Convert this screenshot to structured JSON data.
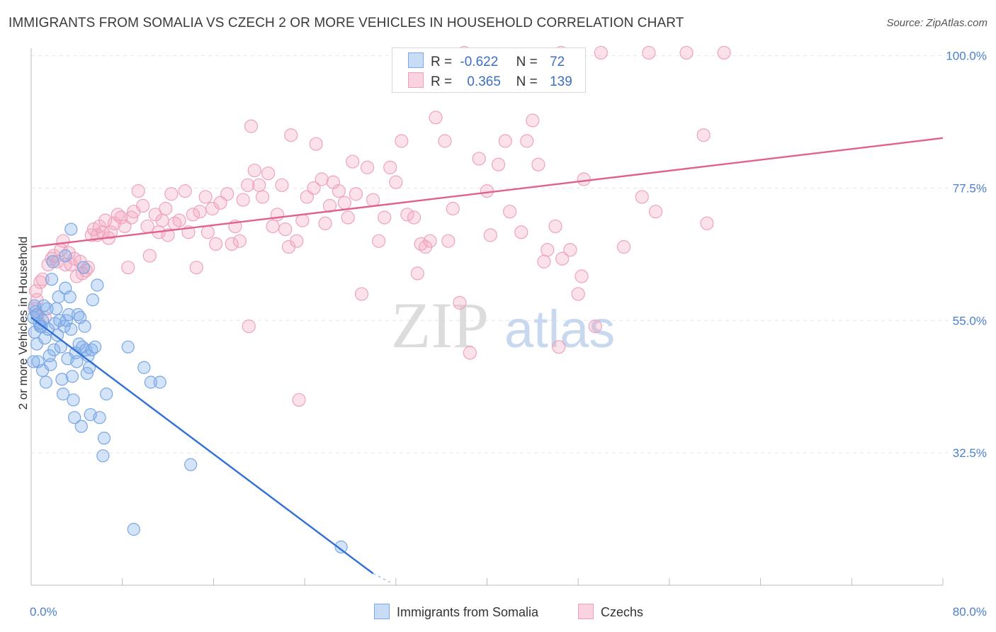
{
  "title": "IMMIGRANTS FROM SOMALIA VS CZECH 2 OR MORE VEHICLES IN HOUSEHOLD CORRELATION CHART",
  "source": "Source: ZipAtlas.com",
  "watermark": {
    "zip": "ZIP",
    "atlas": "atlas"
  },
  "legend": {
    "r_label": "R =",
    "n_label": "N =",
    "rows": [
      {
        "r": "-0.622",
        "n": "72",
        "color": "#7aaae8"
      },
      {
        "r": "0.365",
        "n": "139",
        "color": "#f0a0b8"
      }
    ]
  },
  "bottom_legend": [
    {
      "label": "Immigrants from Somalia",
      "color": "#7aaae8"
    },
    {
      "label": "Czechs",
      "color": "#f0a0b8"
    }
  ],
  "chart_data": {
    "type": "scatter",
    "title": "IMMIGRANTS FROM SOMALIA VS CZECH 2 OR MORE VEHICLES IN HOUSEHOLD CORRELATION CHART",
    "xlabel": "",
    "ylabel": "2 or more Vehicles in Household",
    "xlim": [
      0,
      80
    ],
    "ylim": [
      10,
      102
    ],
    "x_tick_labels": [
      "0.0%",
      "80.0%"
    ],
    "y_ticks": [
      32.5,
      55.0,
      77.5,
      100.0
    ],
    "y_tick_labels": [
      "32.5%",
      "55.0%",
      "77.5%",
      "100.0%"
    ],
    "grid": true,
    "legend_position": "top-center",
    "series": [
      {
        "name": "Immigrants from Somalia",
        "color": "#7aaae8",
        "line_color": "#2f6fd6",
        "trend": {
          "x": [
            0,
            30
          ],
          "y": [
            55.5,
            12
          ]
        },
        "trend_dashed_to": {
          "x": [
            30,
            31.5
          ],
          "y": [
            12,
            10.5
          ]
        },
        "points": [
          [
            0.2,
            55.5
          ],
          [
            0.3,
            53.0
          ],
          [
            0.4,
            56.5
          ],
          [
            0.5,
            51.0
          ],
          [
            0.6,
            48.0
          ],
          [
            0.8,
            54.0
          ],
          [
            1.0,
            46.5
          ],
          [
            1.0,
            55.0
          ],
          [
            1.2,
            52.0
          ],
          [
            1.3,
            44.5
          ],
          [
            1.4,
            57.0
          ],
          [
            1.5,
            53.5
          ],
          [
            1.6,
            49.0
          ],
          [
            1.7,
            47.5
          ],
          [
            1.8,
            62.0
          ],
          [
            1.9,
            65.0
          ],
          [
            2.0,
            50.0
          ],
          [
            2.1,
            54.5
          ],
          [
            2.2,
            57.0
          ],
          [
            2.3,
            52.5
          ],
          [
            2.4,
            59.0
          ],
          [
            2.5,
            55.0
          ],
          [
            2.6,
            50.5
          ],
          [
            2.7,
            45.0
          ],
          [
            2.8,
            42.5
          ],
          [
            2.9,
            54.0
          ],
          [
            3.0,
            66.0
          ],
          [
            3.0,
            60.5
          ],
          [
            3.1,
            55.0
          ],
          [
            3.2,
            48.5
          ],
          [
            3.3,
            56.0
          ],
          [
            3.4,
            59.0
          ],
          [
            3.5,
            53.5
          ],
          [
            3.6,
            45.5
          ],
          [
            3.7,
            41.5
          ],
          [
            3.8,
            38.5
          ],
          [
            3.9,
            49.5
          ],
          [
            4.0,
            48.0
          ],
          [
            4.1,
            56.0
          ],
          [
            4.2,
            51.0
          ],
          [
            4.3,
            55.5
          ],
          [
            4.4,
            37.0
          ],
          [
            4.5,
            50.5
          ],
          [
            4.6,
            64.0
          ],
          [
            4.7,
            54.0
          ],
          [
            4.8,
            50.0
          ],
          [
            4.9,
            46.0
          ],
          [
            5.0,
            49.0
          ],
          [
            5.1,
            47.0
          ],
          [
            5.2,
            39.0
          ],
          [
            5.3,
            50.0
          ],
          [
            5.4,
            58.5
          ],
          [
            5.6,
            50.5
          ],
          [
            5.8,
            61.0
          ],
          [
            6.0,
            38.5
          ],
          [
            3.5,
            70.5
          ],
          [
            6.4,
            35.0
          ],
          [
            6.3,
            32.0
          ],
          [
            6.6,
            42.5
          ],
          [
            8.5,
            50.5
          ],
          [
            9.0,
            19.5
          ],
          [
            9.9,
            47.0
          ],
          [
            10.5,
            44.5
          ],
          [
            11.3,
            44.5
          ],
          [
            14.0,
            30.5
          ],
          [
            27.2,
            16.5
          ],
          [
            0.3,
            57.5
          ],
          [
            0.5,
            56.0
          ],
          [
            0.7,
            54.5
          ],
          [
            1.1,
            57.5
          ],
          [
            0.9,
            54.0
          ],
          [
            0.2,
            48.0
          ]
        ]
      },
      {
        "name": "Czechs",
        "color": "#f0a0b8",
        "line_color": "#e06090",
        "trend": {
          "x": [
            0,
            80
          ],
          "y": [
            67.5,
            86.0
          ]
        },
        "points": [
          [
            0.3,
            57.0
          ],
          [
            0.5,
            58.5
          ],
          [
            0.6,
            56.0
          ],
          [
            0.8,
            61.5
          ],
          [
            1.0,
            62.0
          ],
          [
            1.2,
            55.5
          ],
          [
            1.5,
            64.5
          ],
          [
            1.8,
            65.5
          ],
          [
            2.0,
            66.0
          ],
          [
            2.3,
            65.0
          ],
          [
            2.6,
            67.0
          ],
          [
            2.8,
            68.5
          ],
          [
            3.0,
            64.5
          ],
          [
            3.3,
            66.5
          ],
          [
            3.5,
            64.5
          ],
          [
            3.8,
            65.5
          ],
          [
            4.0,
            62.5
          ],
          [
            4.3,
            65.0
          ],
          [
            4.5,
            63.0
          ],
          [
            4.8,
            63.5
          ],
          [
            5.0,
            64.0
          ],
          [
            5.3,
            69.5
          ],
          [
            5.5,
            70.5
          ],
          [
            5.8,
            69.5
          ],
          [
            6.0,
            71.0
          ],
          [
            6.3,
            70.0
          ],
          [
            6.5,
            72.0
          ],
          [
            6.8,
            69.0
          ],
          [
            7.0,
            70.0
          ],
          [
            7.3,
            71.5
          ],
          [
            7.6,
            73.0
          ],
          [
            7.9,
            72.5
          ],
          [
            8.2,
            71.0
          ],
          [
            8.5,
            64.0
          ],
          [
            8.8,
            72.5
          ],
          [
            9.0,
            73.5
          ],
          [
            9.4,
            77.0
          ],
          [
            9.8,
            74.5
          ],
          [
            10.2,
            71.0
          ],
          [
            10.4,
            66.0
          ],
          [
            10.9,
            73.0
          ],
          [
            11.2,
            70.0
          ],
          [
            11.5,
            72.0
          ],
          [
            11.8,
            74.0
          ],
          [
            12.0,
            69.5
          ],
          [
            12.3,
            76.5
          ],
          [
            12.6,
            71.5
          ],
          [
            13.0,
            72.0
          ],
          [
            13.5,
            77.0
          ],
          [
            13.8,
            70.0
          ],
          [
            14.2,
            73.0
          ],
          [
            14.5,
            64.0
          ],
          [
            14.8,
            73.5
          ],
          [
            15.3,
            76.0
          ],
          [
            15.5,
            70.0
          ],
          [
            15.9,
            74.0
          ],
          [
            16.2,
            68.0
          ],
          [
            16.6,
            75.0
          ],
          [
            17.2,
            76.5
          ],
          [
            17.6,
            68.0
          ],
          [
            17.9,
            71.0
          ],
          [
            18.3,
            68.5
          ],
          [
            18.6,
            75.5
          ],
          [
            19.0,
            78.0
          ],
          [
            19.3,
            88.0
          ],
          [
            19.6,
            80.5
          ],
          [
            20.0,
            78.0
          ],
          [
            20.3,
            76.0
          ],
          [
            20.8,
            80.0
          ],
          [
            21.2,
            71.0
          ],
          [
            21.6,
            73.0
          ],
          [
            22.0,
            78.0
          ],
          [
            22.3,
            70.5
          ],
          [
            22.6,
            67.5
          ],
          [
            22.8,
            86.5
          ],
          [
            23.3,
            68.5
          ],
          [
            23.8,
            72.0
          ],
          [
            24.2,
            76.0
          ],
          [
            24.8,
            77.5
          ],
          [
            25.0,
            85.0
          ],
          [
            25.5,
            79.0
          ],
          [
            25.8,
            71.5
          ],
          [
            26.2,
            74.5
          ],
          [
            26.5,
            78.5
          ],
          [
            27.0,
            77.0
          ],
          [
            27.5,
            75.0
          ],
          [
            27.8,
            72.5
          ],
          [
            28.2,
            82.0
          ],
          [
            28.5,
            76.5
          ],
          [
            29.0,
            59.5
          ],
          [
            29.5,
            81.0
          ],
          [
            30.0,
            75.5
          ],
          [
            30.5,
            68.5
          ],
          [
            31.0,
            72.5
          ],
          [
            31.5,
            81.0
          ],
          [
            32.0,
            78.5
          ],
          [
            32.5,
            85.5
          ],
          [
            33.0,
            73.0
          ],
          [
            33.6,
            72.5
          ],
          [
            33.9,
            63.0
          ],
          [
            34.2,
            68.0
          ],
          [
            34.6,
            67.5
          ],
          [
            35.0,
            68.5
          ],
          [
            35.5,
            89.5
          ],
          [
            36.3,
            85.5
          ],
          [
            36.6,
            68.5
          ],
          [
            37.0,
            74.0
          ],
          [
            37.6,
            58.0
          ],
          [
            38.5,
            49.5
          ],
          [
            39.3,
            82.5
          ],
          [
            40.0,
            77.0
          ],
          [
            40.3,
            69.5
          ],
          [
            41.0,
            81.5
          ],
          [
            41.6,
            85.5
          ],
          [
            42.0,
            73.5
          ],
          [
            43.0,
            70.0
          ],
          [
            43.5,
            85.5
          ],
          [
            44.0,
            89.0
          ],
          [
            44.5,
            81.5
          ],
          [
            45.0,
            65.0
          ],
          [
            45.3,
            67.0
          ],
          [
            46.0,
            71.0
          ],
          [
            46.3,
            50.5
          ],
          [
            46.6,
            65.5
          ],
          [
            47.3,
            67.0
          ],
          [
            48.0,
            59.5
          ],
          [
            48.3,
            62.5
          ],
          [
            48.5,
            79.0
          ],
          [
            49.5,
            54.0
          ],
          [
            52.0,
            67.5
          ],
          [
            53.6,
            76.0
          ],
          [
            54.8,
            73.5
          ],
          [
            59.0,
            86.5
          ],
          [
            59.3,
            71.5
          ],
          [
            19.1,
            54.0
          ],
          [
            23.5,
            41.5
          ],
          [
            38.0,
            100.5
          ],
          [
            46.5,
            100.5
          ],
          [
            50.0,
            100.5
          ],
          [
            54.2,
            100.5
          ],
          [
            57.5,
            100.5
          ],
          [
            60.8,
            100.5
          ],
          [
            0.4,
            60.0
          ]
        ]
      }
    ]
  }
}
